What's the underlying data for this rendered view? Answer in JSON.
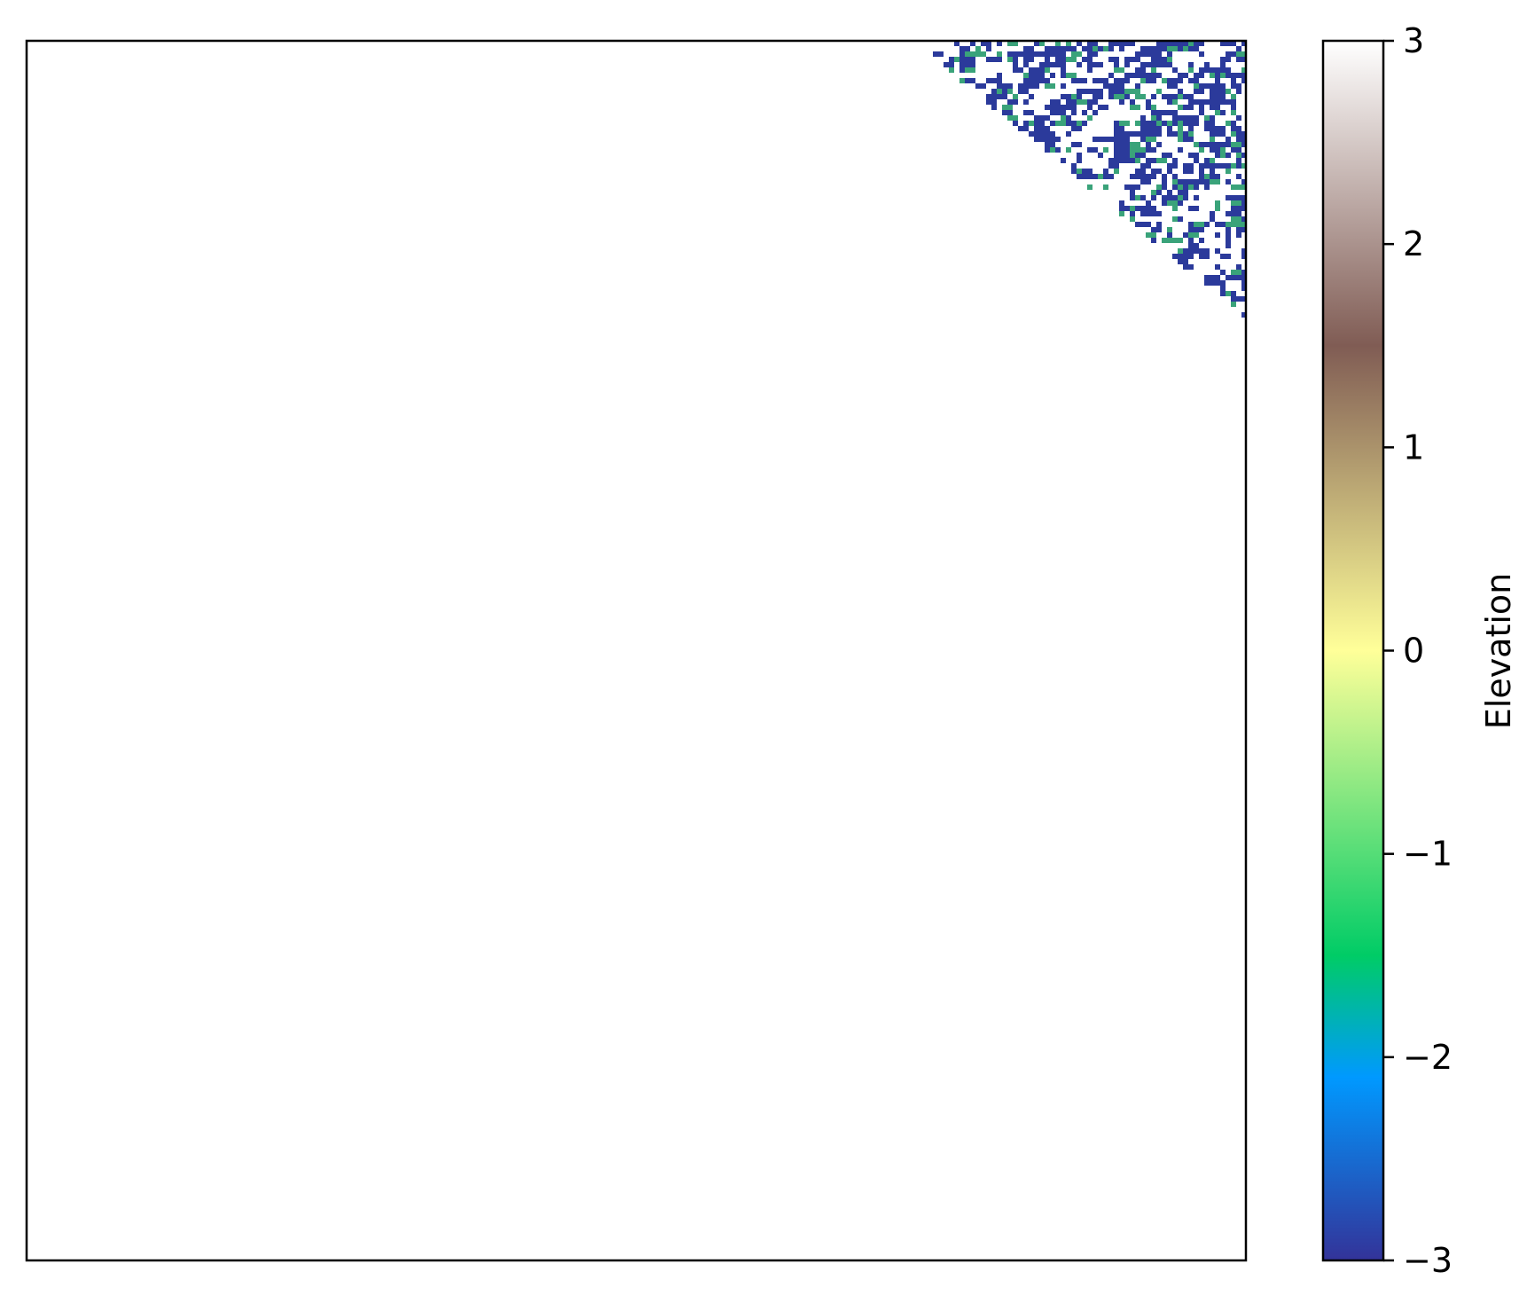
{
  "chart_data": {
    "type": "heatmap",
    "colormap": "terrain",
    "colorbar": {
      "label": "Elevation",
      "vmin": -3,
      "vmax": 3,
      "ticks": [
        {
          "value": 3,
          "label": "3"
        },
        {
          "value": 2,
          "label": "2"
        },
        {
          "value": 1,
          "label": "1"
        },
        {
          "value": 0,
          "label": "0"
        },
        {
          "value": -1,
          "label": "−1"
        },
        {
          "value": -2,
          "label": "−2"
        },
        {
          "value": -3,
          "label": "−3"
        }
      ],
      "colors": [
        {
          "stop": 0.0,
          "color": "#333399"
        },
        {
          "stop": 0.15,
          "color": "#0099ff"
        },
        {
          "stop": 0.25,
          "color": "#00cc66"
        },
        {
          "stop": 0.5,
          "color": "#ffff99"
        },
        {
          "stop": 0.75,
          "color": "#805c54"
        },
        {
          "stop": 1.0,
          "color": "#ffffff"
        }
      ]
    },
    "axes": {
      "xticks": [],
      "yticks": [],
      "frame": true
    },
    "field_description": "Mostly white (masked/high) field; a speckled channel network of dark blue (about −3) and green-blue (about −2) values appears only in the upper-right corner.",
    "feature_colors": {
      "channel": "#2b3a9b",
      "channel_edge": "#3aa37a",
      "background": "#ffffff"
    }
  }
}
